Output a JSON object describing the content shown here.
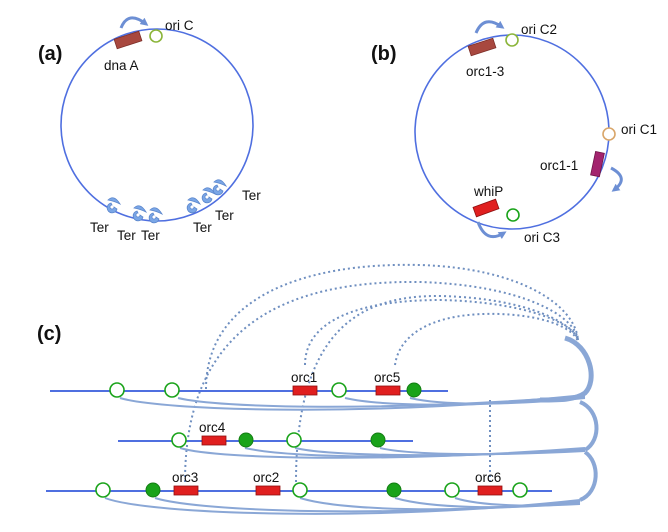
{
  "panels": {
    "a": {
      "label": "(a)",
      "gene": "dna A",
      "origin": "ori C",
      "terminators": [
        "Ter",
        "Ter",
        "Ter",
        "Ter",
        "Ter",
        "Ter"
      ]
    },
    "b": {
      "label": "(b)",
      "genes": [
        "orc1-3",
        "orc1-1",
        "whiP"
      ],
      "origins": [
        "ori C2",
        "ori C1",
        "ori C3"
      ]
    },
    "c": {
      "label": "(c)",
      "genes": [
        "orc1",
        "orc5",
        "orc4",
        "orc3",
        "orc2",
        "orc6"
      ]
    }
  },
  "colors": {
    "line": "#4f6fe0",
    "arc": "#8aa7d6",
    "dotted": "#6f8fc0",
    "gene_brown": "#a8483f",
    "gene_red": "#e01f1f",
    "gene_magenta": "#a3246e",
    "origin_green": "#1aa31a",
    "origin_orange": "#d9a66a",
    "ter_blue": "#7aa6e6"
  }
}
